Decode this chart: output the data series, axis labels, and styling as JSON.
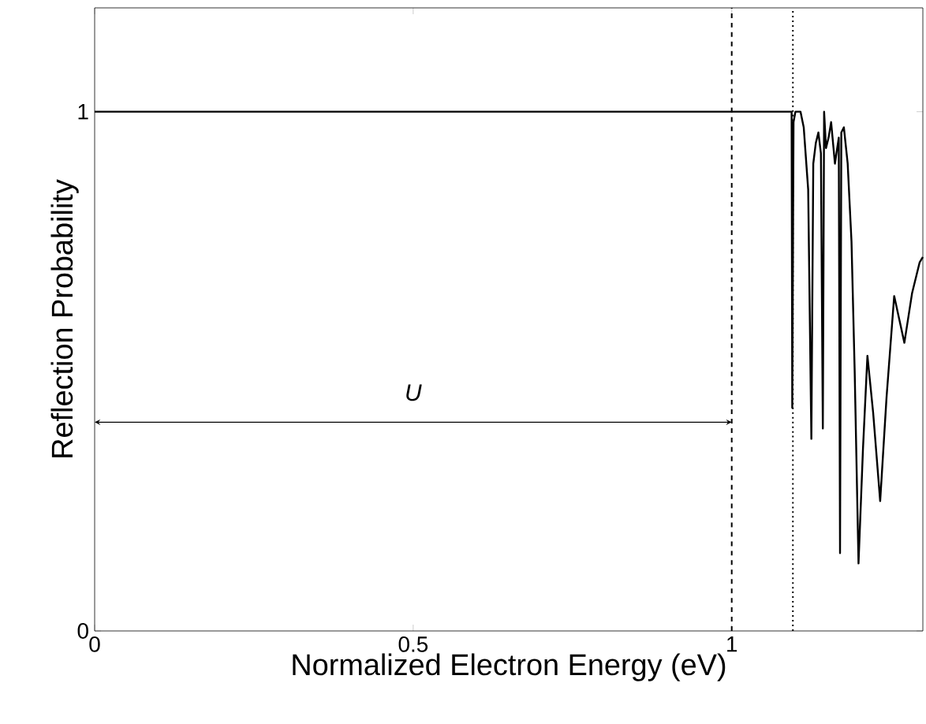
{
  "chart_data": {
    "type": "line",
    "xlabel": "Normalized Electron Energy (eV)",
    "ylabel": "Reflection Probability",
    "x": [
      0,
      1.094,
      1.095,
      1.097,
      1.1,
      1.108,
      1.113,
      1.12,
      1.125,
      1.128,
      1.132,
      1.136,
      1.14,
      1.143,
      1.145,
      1.148,
      1.152,
      1.156,
      1.162,
      1.168,
      1.17,
      1.172,
      1.176,
      1.182,
      1.188,
      1.193,
      1.199,
      1.206,
      1.213,
      1.222,
      1.233,
      1.243,
      1.255,
      1.263,
      1.271,
      1.283,
      1.295,
      1.3
    ],
    "series": [
      {
        "color": "#000000",
        "values": [
          1,
          1,
          0.43,
          0.98,
          1.0,
          1.0,
          0.97,
          0.85,
          0.37,
          0.9,
          0.94,
          0.96,
          0.92,
          0.39,
          1.0,
          0.93,
          0.95,
          0.98,
          0.9,
          0.95,
          0.15,
          0.96,
          0.97,
          0.9,
          0.75,
          0.5,
          0.13,
          0.35,
          0.53,
          0.42,
          0.25,
          0.45,
          0.645,
          0.6,
          0.555,
          0.65,
          0.71,
          0.72
        ]
      }
    ],
    "xlim": [
      0,
      1.3
    ],
    "ylim": [
      0,
      1.2
    ],
    "xticks": [
      0,
      0.5,
      1
    ],
    "yticks": [
      0,
      1
    ],
    "ref_lines": [
      {
        "axis": "x",
        "value": 1,
        "line_style": "dashed"
      },
      {
        "axis": "x",
        "value": 1.096,
        "line_style": "dotted"
      }
    ],
    "annotations": [
      "U"
    ],
    "grid": false,
    "line_style": "solid",
    "marker": "none"
  }
}
